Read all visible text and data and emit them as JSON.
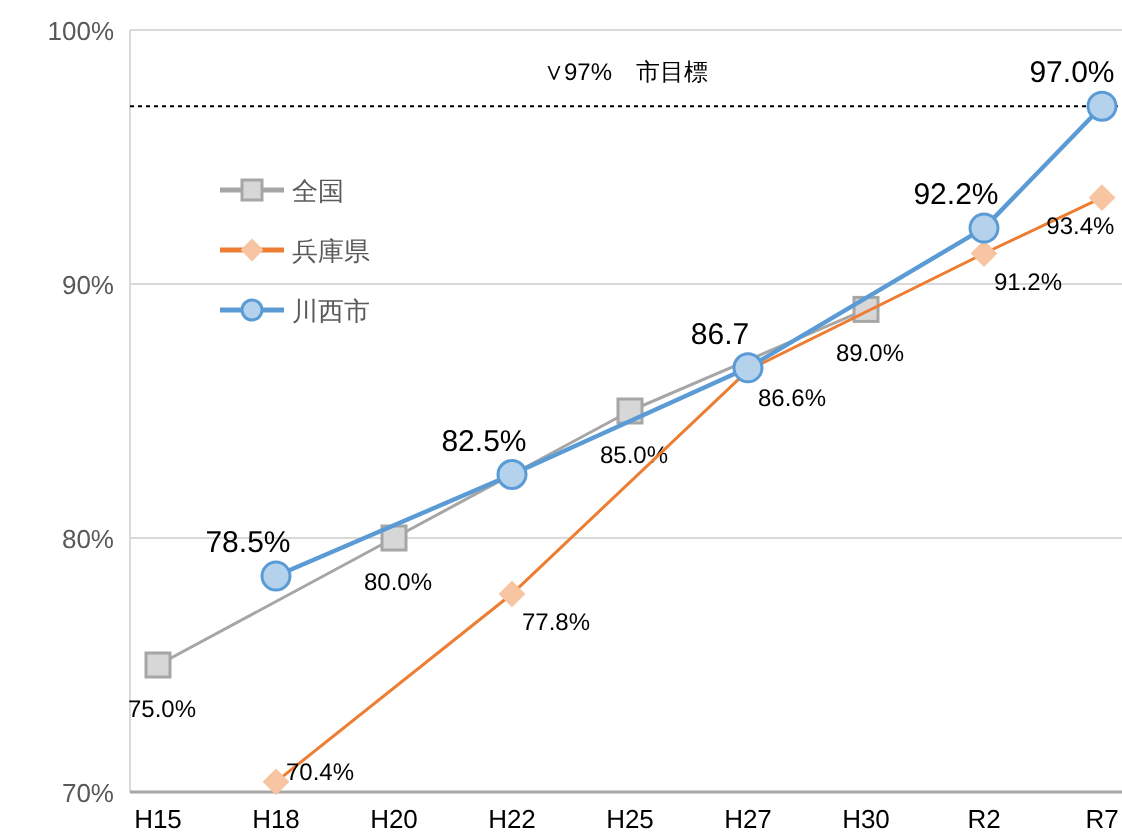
{
  "chart_data": {
    "type": "line",
    "ylim": [
      70,
      100
    ],
    "yticks": [
      {
        "value": 70,
        "label": "70%"
      },
      {
        "value": 80,
        "label": "80%"
      },
      {
        "value": 90,
        "label": "90%"
      },
      {
        "value": 100,
        "label": "100%"
      }
    ],
    "categories": [
      "H15",
      "H18",
      "H20",
      "H22",
      "H25",
      "H27",
      "H30",
      "R2",
      "R7"
    ],
    "grid": "y",
    "legend": "top left",
    "ref_lines": [
      {
        "axis": "y",
        "value": 97,
        "label": "∨97%　市目標",
        "line_style": "dotted",
        "color": "#000000"
      }
    ],
    "series": [
      {
        "name": "全国",
        "color": "#a6a6a6",
        "marker": "square",
        "values": [
          75.0,
          null,
          80.0,
          null,
          85.0,
          null,
          89.0,
          null,
          null
        ],
        "value_labels": [
          "75.0%",
          null,
          "80.0%",
          null,
          "85.0%",
          null,
          "89.0%",
          null,
          null
        ]
      },
      {
        "name": "兵庫県",
        "color": "#ed7d31",
        "marker": "diamond",
        "values": [
          null,
          70.4,
          null,
          77.8,
          null,
          86.6,
          null,
          91.2,
          93.4
        ],
        "value_labels": [
          null,
          "70.4%",
          null,
          "77.8%",
          null,
          "86.6%",
          null,
          "91.2%",
          "93.4%"
        ]
      },
      {
        "name": "川西市",
        "color": "#5b9bd5",
        "marker": "circle",
        "values": [
          null,
          78.5,
          null,
          82.5,
          null,
          86.7,
          null,
          92.2,
          97.0
        ],
        "value_labels": [
          null,
          "78.5%",
          null,
          "82.5%",
          null,
          "86.7",
          null,
          "92.2%",
          "97.0%"
        ]
      }
    ]
  }
}
